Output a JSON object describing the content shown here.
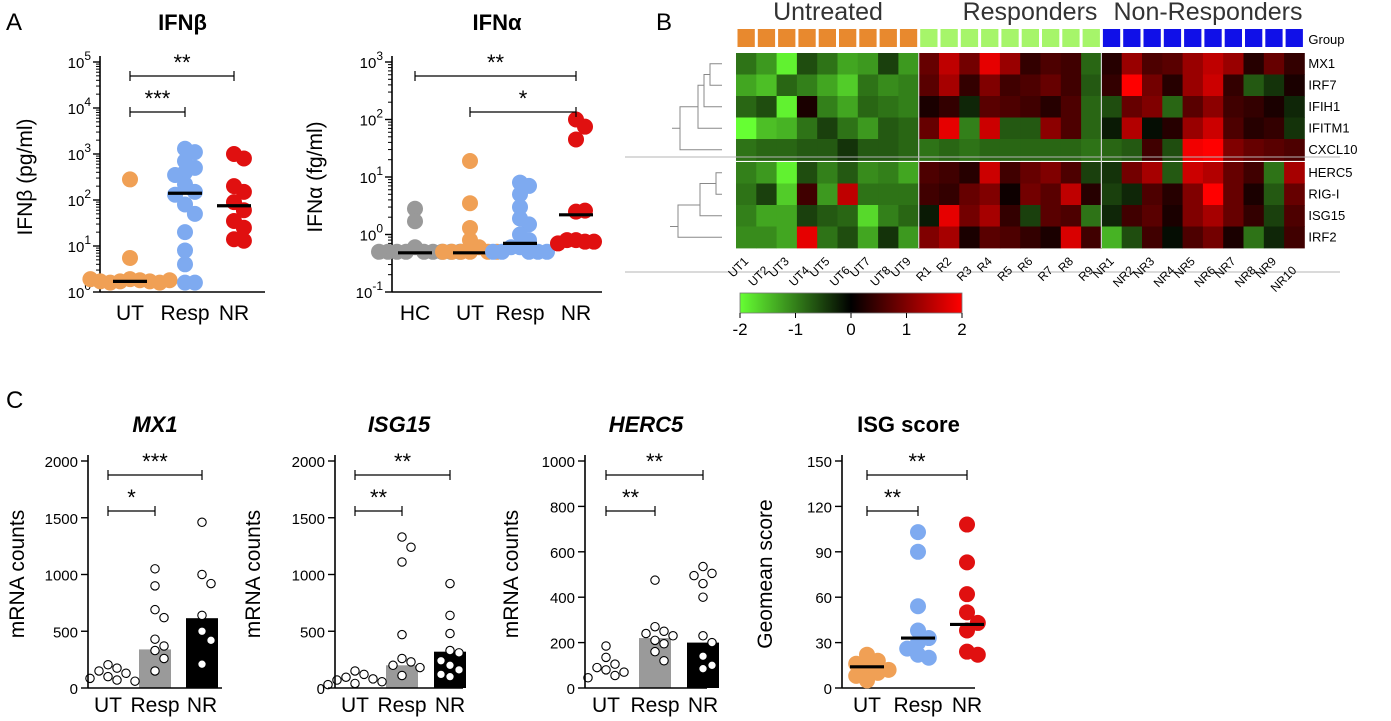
{
  "panel_labels": [
    "A",
    "B",
    "C"
  ],
  "chart_data": [
    {
      "id": "ifnb",
      "type": "scatter",
      "title": "IFNβ",
      "ylabel": "IFNβ (pg/ml)",
      "yscale": "log",
      "ylim_log10": [
        0,
        5
      ],
      "yticks": [
        "10^0",
        "10^1",
        "10^2",
        "10^3",
        "10^4",
        "10^5"
      ],
      "categories": [
        "UT",
        "Resp",
        "NR"
      ],
      "series": [
        {
          "name": "UT",
          "color": "#f0a055",
          "values": [
            280,
            5.5,
            1.9,
            1.8,
            1.7,
            1.7,
            1.6,
            1.6,
            1.7,
            1.8,
            1.9
          ],
          "median": 1.7
        },
        {
          "name": "Resp",
          "color": "#7eaaf0",
          "values": [
            1300,
            1100,
            700,
            500,
            400,
            350,
            220,
            150,
            130,
            80,
            50,
            20,
            8,
            4,
            1.6,
            1.6
          ],
          "median": 140
        },
        {
          "name": "NR",
          "color": "#e01010",
          "values": [
            1000,
            800,
            200,
            150,
            90,
            60,
            35,
            25,
            14,
            13
          ],
          "median": 75
        }
      ],
      "significance": [
        {
          "pair": [
            "UT",
            "Resp"
          ],
          "label": "***"
        },
        {
          "pair": [
            "UT",
            "NR"
          ],
          "label": "**"
        }
      ]
    },
    {
      "id": "ifna",
      "type": "scatter",
      "title": "IFNα",
      "ylabel": "IFNα (fg/ml)",
      "yscale": "log",
      "ylim_log10": [
        -1,
        3
      ],
      "yticks": [
        "10^-1",
        "10^0",
        "10^1",
        "10^2",
        "10^3"
      ],
      "categories": [
        "HC",
        "UT",
        "Resp",
        "NR"
      ],
      "series": [
        {
          "name": "HC",
          "color": "#999999",
          "values": [
            2.8,
            1.7,
            0.6,
            0.5,
            0.5,
            0.5,
            0.5,
            0.5,
            0.5,
            0.5,
            0.5,
            0.5
          ],
          "median": 0.48
        },
        {
          "name": "UT",
          "color": "#f0a055",
          "values": [
            19,
            3.5,
            1.3,
            0.8,
            0.6,
            0.5,
            0.5,
            0.5,
            0.5,
            0.5,
            0.5
          ],
          "median": 0.48
        },
        {
          "name": "Resp",
          "color": "#7eaaf0",
          "values": [
            8,
            7,
            5,
            3,
            1.9,
            1.5,
            1.0,
            0.8,
            0.6,
            0.6,
            0.5,
            0.5,
            0.5,
            0.5,
            0.5
          ],
          "median": 0.7
        },
        {
          "name": "NR",
          "color": "#e01010",
          "values": [
            100,
            75,
            45,
            2.5,
            2.6,
            0.8,
            0.75,
            0.8,
            0.75,
            0.7
          ],
          "median": 2.2
        }
      ],
      "significance": [
        {
          "pair": [
            "UT",
            "NR"
          ],
          "label": "*"
        },
        {
          "pair": [
            "HC",
            "NR"
          ],
          "label": "**"
        }
      ]
    },
    {
      "id": "heatmap",
      "type": "heatmap",
      "groups": [
        {
          "name": "Untreated",
          "color": "#e8892e",
          "n": 9
        },
        {
          "name": "Responders",
          "color": "#a6f56a",
          "n": 9
        },
        {
          "name": "Non-Responders",
          "color": "#1010e8",
          "n": 10
        }
      ],
      "group_label": "Group",
      "columns": [
        "UT1",
        "UT2",
        "UT3",
        "UT4",
        "UT5",
        "UT6",
        "UT7",
        "UT8",
        "UT9",
        "R1",
        "R2",
        "R3",
        "R4",
        "R5",
        "R6",
        "R7",
        "R8",
        "R9",
        "NR1",
        "NR2",
        "NR3",
        "NR4",
        "NR5",
        "NR6",
        "NR7",
        "NR8",
        "NR9",
        "NR10"
      ],
      "cluster1_rows": [
        "MX1",
        "IRF7",
        "IFIH1",
        "IFITM1",
        "CXCL10"
      ],
      "cluster2_rows": [
        "HERC5",
        "RIG-I",
        "ISG15",
        "IRF2"
      ],
      "values": [
        [
          -0.9,
          -1.2,
          -1.9,
          -0.6,
          -0.9,
          -1.3,
          -1.2,
          -0.5,
          -1.2,
          0.8,
          1.5,
          0.9,
          1.8,
          1.2,
          0.4,
          0.6,
          0.5,
          -0.8,
          0.3,
          1.2,
          0.6,
          0.7,
          1.2,
          1.5,
          1.2,
          0.3,
          0.8,
          0.4
        ],
        [
          -1.3,
          -1.5,
          -0.8,
          -1.0,
          -1.3,
          -1.6,
          -0.9,
          -1.1,
          -1.0,
          0.7,
          1.3,
          0.4,
          1.0,
          0.5,
          0.6,
          0.8,
          0.5,
          -0.7,
          0.4,
          2.0,
          0.9,
          0.3,
          1.2,
          1.6,
          0.4,
          -0.7,
          -0.4,
          0.2
        ],
        [
          -0.8,
          -0.6,
          -1.9,
          0.2,
          -1.0,
          -1.3,
          -0.8,
          -0.9,
          -1.0,
          0.2,
          0.4,
          -0.3,
          0.7,
          0.6,
          0.5,
          0.3,
          0.6,
          -0.8,
          -0.6,
          0.8,
          1.0,
          -0.8,
          0.7,
          1.1,
          0.5,
          0.4,
          0.2,
          -0.3
        ],
        [
          -2.0,
          -1.5,
          -1.4,
          -0.9,
          -0.5,
          -0.9,
          -1.2,
          -0.7,
          -0.8,
          0.8,
          1.8,
          -1.0,
          1.6,
          -0.7,
          -0.7,
          1.1,
          0.6,
          -0.8,
          -0.2,
          1.4,
          -0.1,
          0.3,
          1.2,
          1.6,
          0.6,
          0.3,
          0.4,
          -0.4
        ],
        [
          -0.9,
          -0.8,
          -0.8,
          -0.7,
          -0.7,
          -0.4,
          -0.7,
          -0.7,
          -0.8,
          -0.9,
          -0.8,
          -0.9,
          -0.8,
          -0.8,
          -0.8,
          -0.8,
          -0.8,
          -0.9,
          -0.8,
          -0.7,
          0.5,
          -0.6,
          1.9,
          2.0,
          1.0,
          0.8,
          0.7,
          0.6
        ],
        [
          -1.0,
          -1.2,
          -1.9,
          -0.6,
          -1.0,
          -0.7,
          -1.1,
          -1.0,
          -1.3,
          0.6,
          0.5,
          0.3,
          1.6,
          0.5,
          0.8,
          1.0,
          0.6,
          -0.5,
          -0.4,
          0.9,
          1.3,
          -0.7,
          1.6,
          1.4,
          0.8,
          0.5,
          -0.9,
          1.3
        ],
        [
          -0.9,
          -0.5,
          -1.6,
          0.5,
          -1.2,
          1.5,
          -0.9,
          -0.9,
          -0.9,
          0.5,
          0.4,
          0.8,
          1.0,
          0.1,
          0.9,
          0.7,
          1.5,
          0.3,
          -0.5,
          -0.3,
          0.6,
          0.3,
          1.0,
          2.0,
          0.8,
          0.2,
          -0.7,
          0.8
        ],
        [
          -1.0,
          -1.3,
          -1.3,
          -0.5,
          -0.7,
          -0.8,
          -1.7,
          -1.0,
          -0.8,
          -0.2,
          1.8,
          0.9,
          1.3,
          0.4,
          -0.5,
          0.7,
          0.6,
          -0.9,
          -0.3,
          0.5,
          0.7,
          0.2,
          1.0,
          1.3,
          0.8,
          0.4,
          -0.5,
          0.6
        ],
        [
          -1.1,
          -1.1,
          -1.3,
          1.8,
          -0.9,
          -0.6,
          -1.3,
          -0.4,
          -1.2,
          1.0,
          1.3,
          0.2,
          0.7,
          0.6,
          0.4,
          0.2,
          1.7,
          0.5,
          -1.4,
          -0.6,
          0.5,
          -0.1,
          0.6,
          0.9,
          0.2,
          -0.9,
          -0.3,
          0.5
        ]
      ],
      "colorbar": {
        "ticks": [
          "-2",
          "-1",
          "0",
          "1",
          "2"
        ],
        "colors": [
          "#66ff33",
          "#000000",
          "#ff0000"
        ],
        "range": [
          -2,
          2
        ]
      }
    },
    {
      "id": "mx1",
      "type": "bar",
      "title": "MX1",
      "ylabel": "mRNA counts",
      "ylim": [
        0,
        2000
      ],
      "yticks": [
        "0",
        "500",
        "1000",
        "1500",
        "2000"
      ],
      "categories": [
        "UT",
        "Resp",
        "NR"
      ],
      "bar_colors": [
        "#ffffff",
        "#9a9a9a",
        "#000000"
      ],
      "values": [
        150,
        340,
        615
      ],
      "points": [
        [
          205,
          175,
          150,
          130,
          100,
          85,
          70,
          60
        ],
        [
          1050,
          900,
          690,
          620,
          430,
          370,
          330,
          260,
          150
        ],
        [
          1460,
          1000,
          920,
          640,
          500,
          420,
          210
        ]
      ],
      "significance": [
        {
          "pair": [
            "UT",
            "Resp"
          ],
          "label": "*"
        },
        {
          "pair": [
            "UT",
            "NR"
          ],
          "label": "***"
        }
      ]
    },
    {
      "id": "isg15",
      "type": "bar",
      "title": "ISG15",
      "ylabel": "mRNA counts",
      "ylim": [
        0,
        2000
      ],
      "yticks": [
        "0",
        "500",
        "1000",
        "1500",
        "2000"
      ],
      "categories": [
        "UT",
        "Resp",
        "NR"
      ],
      "bar_colors": [
        "#ffffff",
        "#9a9a9a",
        "#000000"
      ],
      "values": [
        100,
        200,
        320
      ],
      "points": [
        [
          150,
          120,
          95,
          80,
          70,
          55,
          40,
          30
        ],
        [
          1330,
          1240,
          1110,
          470,
          260,
          230,
          200,
          180,
          110
        ],
        [
          920,
          640,
          480,
          330,
          310,
          240,
          200,
          160,
          120,
          100
        ]
      ],
      "significance": [
        {
          "pair": [
            "UT",
            "Resp"
          ],
          "label": "**"
        },
        {
          "pair": [
            "UT",
            "NR"
          ],
          "label": "**"
        }
      ]
    },
    {
      "id": "herc5",
      "type": "bar",
      "title": "HERC5",
      "ylabel": "mRNA counts",
      "ylim": [
        0,
        1000
      ],
      "yticks": [
        "0",
        "200",
        "400",
        "600",
        "800",
        "1000"
      ],
      "categories": [
        "UT",
        "Resp",
        "NR"
      ],
      "bar_colors": [
        "#ffffff",
        "#9a9a9a",
        "#000000"
      ],
      "values": [
        85,
        220,
        200
      ],
      "points": [
        [
          185,
          135,
          105,
          90,
          80,
          70,
          55,
          45
        ],
        [
          475,
          270,
          250,
          240,
          230,
          210,
          195,
          160,
          120
        ],
        [
          535,
          505,
          495,
          460,
          400,
          230,
          200,
          140,
          100,
          85
        ]
      ],
      "significance": [
        {
          "pair": [
            "UT",
            "Resp"
          ],
          "label": "**"
        },
        {
          "pair": [
            "UT",
            "NR"
          ],
          "label": "**"
        }
      ]
    },
    {
      "id": "isgscore",
      "type": "scatter",
      "title": "ISG score",
      "ylabel": "Geomean score",
      "ylim": [
        0,
        150
      ],
      "yticks": [
        "0",
        "30",
        "60",
        "90",
        "120",
        "150"
      ],
      "categories": [
        "UT",
        "Resp",
        "NR"
      ],
      "series": [
        {
          "name": "UT",
          "color": "#f0a055",
          "values": [
            22,
            18,
            16,
            14,
            12,
            10,
            8,
            5
          ],
          "median": 14
        },
        {
          "name": "Resp",
          "color": "#7eaaf0",
          "values": [
            103,
            90,
            54,
            38,
            33,
            30,
            26,
            22,
            20
          ],
          "median": 33
        },
        {
          "name": "NR",
          "color": "#e01010",
          "values": [
            108,
            83,
            62,
            50,
            43,
            38,
            24,
            22
          ],
          "median": 42
        }
      ],
      "significance": [
        {
          "pair": [
            "UT",
            "Resp"
          ],
          "label": "**"
        },
        {
          "pair": [
            "UT",
            "NR"
          ],
          "label": "**"
        }
      ]
    }
  ]
}
